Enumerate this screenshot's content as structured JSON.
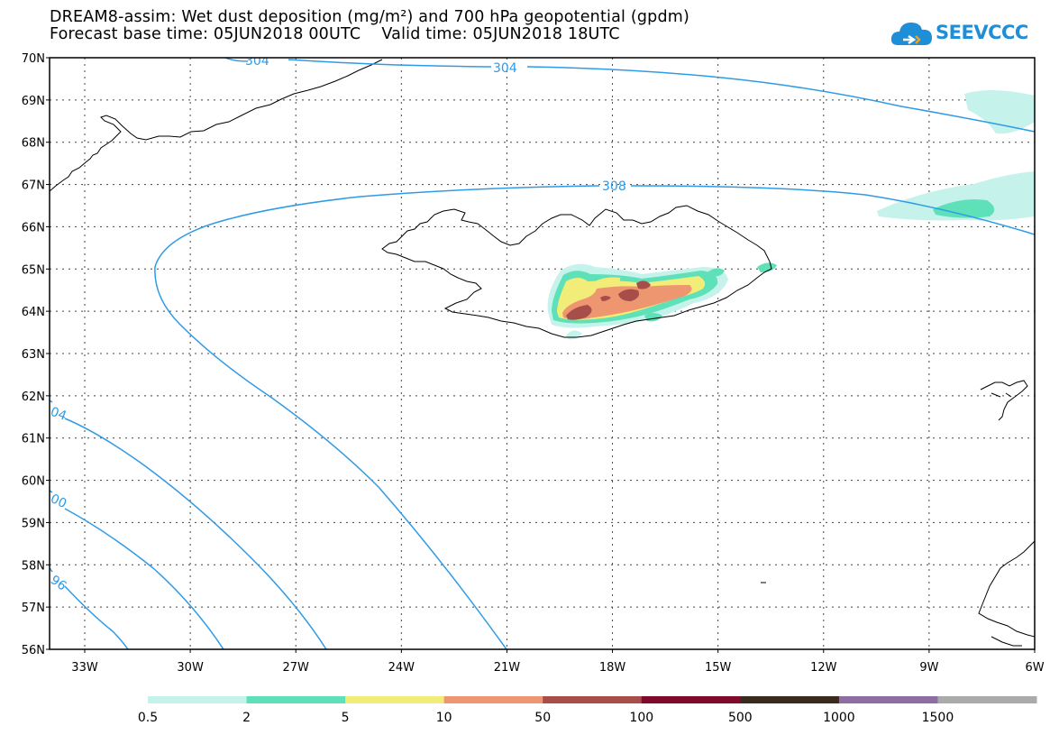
{
  "header": {
    "title_line1": "DREAM8-assim: Wet dust deposition (mg/m²) and 700 hPa geopotential (gpdm)",
    "title_line2": "Forecast base time: 05JUN2018 00UTC    Valid time: 05JUN2018 18UTC"
  },
  "logo": {
    "text": "SEEVCCC",
    "icon": "cloud-logo-icon",
    "color": "#1e8fd6"
  },
  "map": {
    "lat_labels": [
      "70N",
      "69N",
      "68N",
      "67N",
      "66N",
      "65N",
      "64N",
      "63N",
      "62N",
      "61N",
      "60N",
      "59N",
      "58N",
      "57N",
      "56N"
    ],
    "lon_labels": [
      "33W",
      "30W",
      "27W",
      "24W",
      "21W",
      "18W",
      "15W",
      "12W",
      "9W",
      "6W"
    ],
    "contour_color": "#2f9be6",
    "contour_labels": [
      "304",
      "304",
      "308",
      "04",
      "00",
      "96"
    ],
    "coastline_color": "#000000"
  },
  "colorbar": {
    "colors": [
      "#c6f2ec",
      "#5ee0b8",
      "#f2ec78",
      "#ee9670",
      "#a84e4a",
      "#800a2c",
      "#3a2a1e",
      "#8e6ea2",
      "#aaaaaa"
    ],
    "labels": [
      "0.5",
      "2",
      "5",
      "10",
      "50",
      "100",
      "500",
      "1000",
      "1500"
    ]
  }
}
